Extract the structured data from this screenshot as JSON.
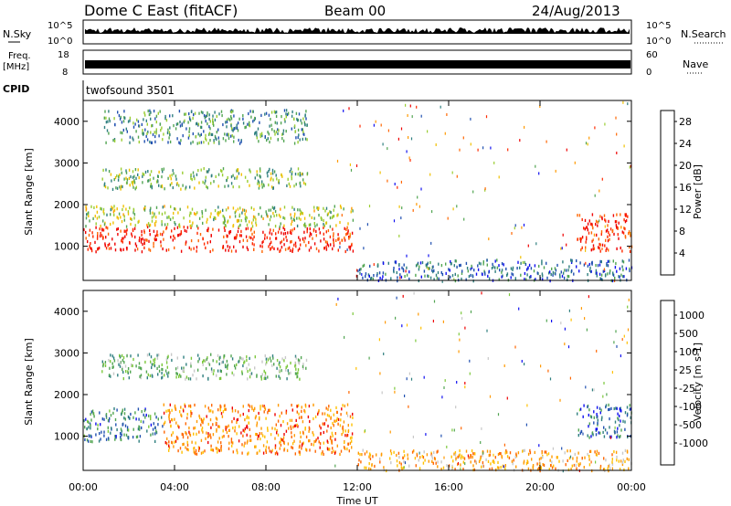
{
  "header": {
    "station": "Dome C East (fitACF)",
    "beam": "Beam 00",
    "date": "24/Aug/2013"
  },
  "strips": {
    "nsky": {
      "label": "N.Sky",
      "tick_top": "10^5",
      "tick_bottom": "10^0",
      "right_label": "N.Search",
      "right_tick_top": "10^5",
      "right_tick_bottom": "10^0"
    },
    "freq": {
      "label": "Freq.",
      "unit": "[MHz]",
      "tick_top": "18",
      "tick_bottom": "8",
      "right_label": "Nave",
      "right_tick_top": "60",
      "right_tick_bottom": "0"
    },
    "cpid": {
      "label": "CPID",
      "value": "twofsound 3501"
    }
  },
  "chart_data": [
    {
      "type": "heatmap",
      "name": "power",
      "ylabel": "Slant Range [km]",
      "yticks": [
        1000,
        2000,
        3000,
        4000
      ],
      "ylim": [
        180,
        4500
      ],
      "xlim": [
        0,
        24
      ],
      "colorbar": {
        "label": "Power [dB]",
        "ticks": [
          "4",
          "8",
          "12",
          "16",
          "20",
          "24",
          "28"
        ],
        "colors": [
          "#1010f0",
          "#2050b0",
          "#2f7f7f",
          "#52a552",
          "#9acd32",
          "#f0c000",
          "#ff9900",
          "#ff6600",
          "#ff2a00",
          "#ee0000"
        ]
      },
      "regions": [
        {
          "t0": 0.0,
          "t1": 11.8,
          "r0": 900,
          "r1": 1500,
          "level": 0.9
        },
        {
          "t0": 0.0,
          "t1": 11.8,
          "r0": 1500,
          "r1": 2000,
          "level": 0.45
        },
        {
          "t0": 0.8,
          "t1": 9.8,
          "r0": 2400,
          "r1": 2900,
          "level": 0.4
        },
        {
          "t0": 0.8,
          "t1": 9.8,
          "r0": 3500,
          "r1": 4300,
          "level": 0.3
        },
        {
          "t0": 21.6,
          "t1": 24.0,
          "r0": 900,
          "r1": 1800,
          "level": 0.85
        },
        {
          "t0": 12.0,
          "t1": 24.0,
          "r0": 200,
          "r1": 700,
          "level": 0.2
        }
      ]
    },
    {
      "type": "heatmap",
      "name": "velocity",
      "ylabel": "Slant Range [km]",
      "yticks": [
        1000,
        2000,
        3000,
        4000
      ],
      "ylim": [
        180,
        4500
      ],
      "xlim": [
        0,
        24
      ],
      "xticks": [
        "00:00",
        "04:00",
        "08:00",
        "12:00",
        "16:00",
        "20:00",
        "00:00"
      ],
      "xlabel": "Time UT",
      "colorbar": {
        "label": "Velocity [m s-1]",
        "ticks": [
          "1000",
          "500",
          "100",
          "25",
          "-25",
          "-100",
          "-500",
          "-1000"
        ],
        "colors": [
          "#1010f0",
          "#2050b0",
          "#2f7f7f",
          "#52a552",
          "#7cc83c",
          "#c8c8c8",
          "#ffc000",
          "#ff9900",
          "#ff6600",
          "#ee0000"
        ]
      },
      "regions": [
        {
          "t0": 0.0,
          "t1": 3.5,
          "r0": 900,
          "r1": 1700,
          "level": 0.25
        },
        {
          "t0": 3.5,
          "t1": 11.8,
          "r0": 600,
          "r1": 1800,
          "level": 0.78
        },
        {
          "t0": 0.8,
          "t1": 9.8,
          "r0": 2400,
          "r1": 3000,
          "level": 0.4
        },
        {
          "t0": 21.6,
          "t1": 24.0,
          "r0": 1000,
          "r1": 1800,
          "level": 0.2
        },
        {
          "t0": 12.0,
          "t1": 24.0,
          "r0": 200,
          "r1": 700,
          "level": 0.72
        }
      ]
    }
  ]
}
